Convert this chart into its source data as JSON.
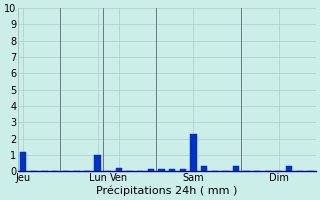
{
  "xlabel": "Précipitations 24h ( mm )",
  "ylim": [
    0,
    10
  ],
  "yticks": [
    0,
    1,
    2,
    3,
    4,
    5,
    6,
    7,
    8,
    9,
    10
  ],
  "background_color": "#cceee8",
  "bar_color": "#0033cc",
  "bar_edge_color": "#002299",
  "grid_color": "#aacccc",
  "x_positions": [
    0,
    1,
    2,
    3,
    4,
    5,
    6,
    7,
    8,
    9,
    10,
    11,
    12,
    13,
    14,
    15,
    16,
    17,
    18,
    19,
    20,
    21,
    22,
    23,
    24,
    25,
    26,
    27
  ],
  "bar_heights": [
    1.2,
    0,
    0,
    0,
    0,
    0,
    0,
    1.0,
    0,
    0.2,
    0,
    0,
    0.15,
    0.15,
    0.15,
    0.15,
    2.3,
    0.3,
    0,
    0,
    0.3,
    0,
    0,
    0,
    0,
    0.3,
    0,
    0
  ],
  "tick_labels_positions": [
    0,
    7,
    9,
    16,
    24
  ],
  "tick_labels_display": [
    "Jeu",
    "Lun",
    "Ven",
    "Sam",
    "Dim"
  ],
  "vline_positions": [
    3.5,
    7.5,
    12.5,
    20.5
  ],
  "vline_color": "#667788",
  "xlabel_fontsize": 8,
  "tick_fontsize": 7,
  "bar_width": 0.6,
  "xlim": [
    -0.5,
    27.5
  ]
}
